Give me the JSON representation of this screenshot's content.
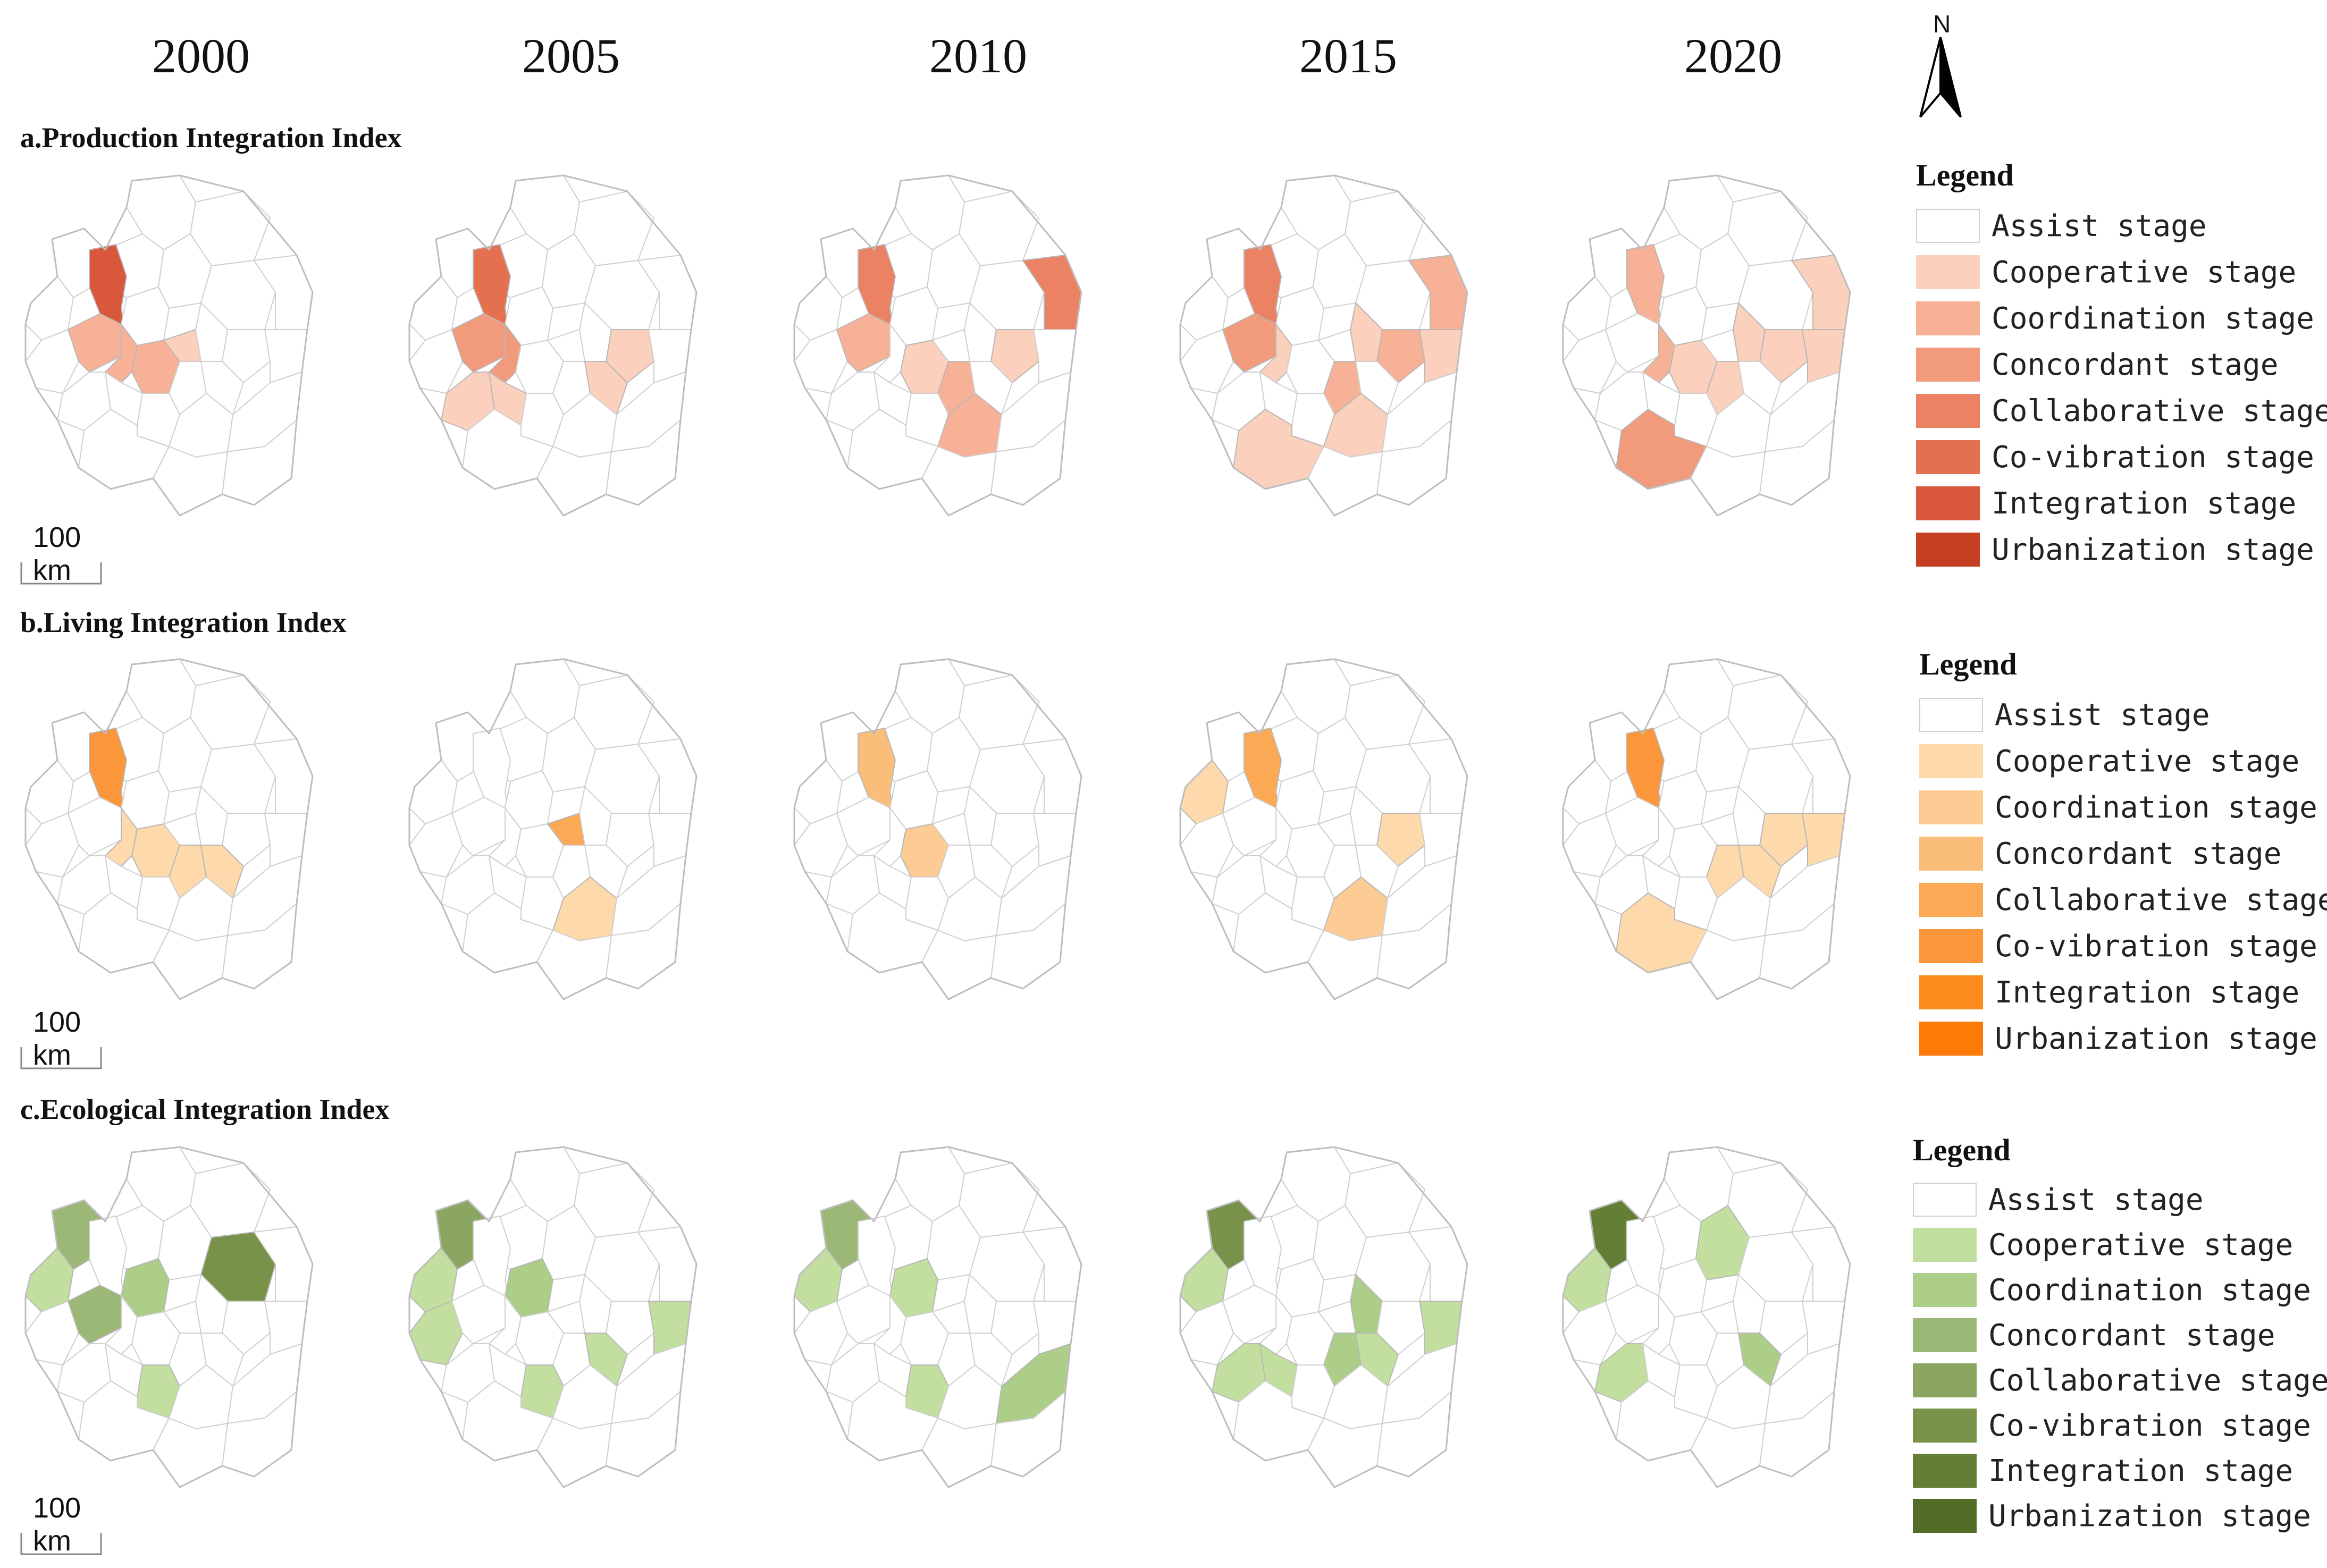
{
  "years": [
    "2000",
    "2005",
    "2010",
    "2015",
    "2020"
  ],
  "north_arrow": {
    "label": "N",
    "icon": "north-arrow-icon"
  },
  "scale_bar": {
    "label": "100 km"
  },
  "legend_title": "Legend",
  "stages": [
    "Assist stage",
    "Cooperative stage",
    "Coordination stage",
    "Concordant stage",
    "Collaborative stage",
    "Co-vibration stage",
    "Integration stage",
    "Urbanization stage"
  ],
  "sections": [
    {
      "key": "production",
      "title": "a.Production Integration Index",
      "colors": [
        "#ffffff",
        "#fbd0bc",
        "#f7b197",
        "#f19a7c",
        "#ea8263",
        "#e4704f",
        "#d9573a",
        "#c43f22"
      ]
    },
    {
      "key": "living",
      "title": "b.Living Integration Index",
      "colors": [
        "#ffffff",
        "#fdd9ab",
        "#fdcc95",
        "#fbbd7a",
        "#fba955",
        "#fb973a",
        "#fd8a1c",
        "#fe7b0a"
      ]
    },
    {
      "key": "ecological",
      "title": "c.Ecological Integration Index",
      "colors": [
        "#ffffff",
        "#c2df9f",
        "#acce88",
        "#9bb877",
        "#8aa660",
        "#789349",
        "#637f35",
        "#536c26"
      ]
    }
  ],
  "highlights": [
    [
      [
        [
          5,
          6
        ],
        [
          11,
          2
        ],
        [
          12,
          2
        ],
        [
          13,
          2
        ],
        [
          14,
          1
        ]
      ],
      [
        [
          5,
          5
        ],
        [
          11,
          3
        ],
        [
          12,
          3
        ],
        [
          16,
          1
        ],
        [
          18,
          1
        ],
        [
          20,
          1
        ],
        [
          21,
          1
        ]
      ],
      [
        [
          5,
          4
        ],
        [
          11,
          2
        ],
        [
          9,
          4
        ],
        [
          13,
          1
        ],
        [
          17,
          2
        ],
        [
          16,
          1
        ],
        [
          23,
          2
        ]
      ],
      [
        [
          5,
          4
        ],
        [
          9,
          2
        ],
        [
          11,
          3
        ],
        [
          12,
          1
        ],
        [
          16,
          2
        ],
        [
          15,
          1
        ],
        [
          17,
          2
        ],
        [
          19,
          1
        ],
        [
          23,
          1
        ],
        [
          25,
          1
        ]
      ],
      [
        [
          5,
          2
        ],
        [
          9,
          1
        ],
        [
          12,
          2
        ],
        [
          13,
          1
        ],
        [
          15,
          1
        ],
        [
          16,
          1
        ],
        [
          17,
          1
        ],
        [
          19,
          1
        ],
        [
          25,
          3
        ]
      ]
    ],
    [
      [
        [
          5,
          5
        ],
        [
          12,
          1
        ],
        [
          13,
          1
        ],
        [
          17,
          1
        ],
        [
          18,
          1
        ]
      ],
      [
        [
          14,
          4
        ],
        [
          23,
          1
        ]
      ],
      [
        [
          5,
          3
        ],
        [
          13,
          2
        ]
      ],
      [
        [
          5,
          4
        ],
        [
          6,
          1
        ],
        [
          16,
          1
        ],
        [
          23,
          2
        ]
      ],
      [
        [
          5,
          5
        ],
        [
          16,
          1
        ],
        [
          17,
          1
        ],
        [
          18,
          1
        ],
        [
          19,
          1
        ],
        [
          25,
          1
        ]
      ]
    ],
    [
      [
        [
          2,
          3
        ],
        [
          6,
          1
        ],
        [
          7,
          2
        ],
        [
          8,
          5
        ],
        [
          11,
          3
        ],
        [
          22,
          1
        ]
      ],
      [
        [
          2,
          4
        ],
        [
          6,
          1
        ],
        [
          7,
          2
        ],
        [
          10,
          1
        ],
        [
          19,
          1
        ],
        [
          18,
          1
        ],
        [
          22,
          1
        ]
      ],
      [
        [
          2,
          3
        ],
        [
          6,
          1
        ],
        [
          7,
          1
        ],
        [
          24,
          2
        ],
        [
          22,
          1
        ]
      ],
      [
        [
          2,
          5
        ],
        [
          6,
          1
        ],
        [
          15,
          2
        ],
        [
          17,
          2
        ],
        [
          18,
          1
        ],
        [
          19,
          1
        ],
        [
          20,
          1
        ],
        [
          21,
          1
        ]
      ],
      [
        [
          2,
          6
        ],
        [
          6,
          1
        ],
        [
          4,
          1
        ],
        [
          20,
          1
        ],
        [
          18,
          2
        ]
      ]
    ]
  ]
}
